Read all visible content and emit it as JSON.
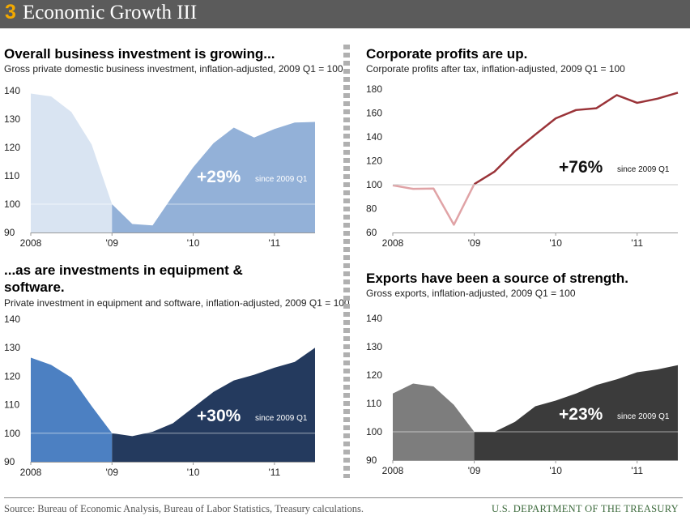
{
  "header": {
    "number": "3",
    "title": "Economic Growth III"
  },
  "footer": {
    "source": "Source: Bureau of Economic Analysis, Bureau of Labor Statistics, Treasury calculations.",
    "agency": "U.S. DEPARTMENT OF THE TREASURY"
  },
  "panels": [
    {
      "title": "Overall business investment is growing...",
      "subtitle": "Gross private domestic business investment, inflation-adjusted, 2009 Q1 = 100"
    },
    {
      "title": "Corporate profits are up.",
      "subtitle": "Corporate profits after tax, inflation-adjusted, 2009 Q1 = 100"
    },
    {
      "title": "...as are investments in equipment & software.",
      "subtitle": "Private investment in equipment and software, inflation-adjusted, 2009 Q1 = 100"
    },
    {
      "title": "Exports have been a source of strength.",
      "subtitle": "Gross exports, inflation-adjusted, 2009 Q1 = 100"
    }
  ],
  "colors": {
    "inv_pre": "#d9e4f2",
    "inv_post": "#93b1d8",
    "eq_pre": "#4c80c2",
    "eq_post": "#243a5e",
    "exp_pre": "#7d7d7d",
    "exp_post": "#3b3b3b",
    "profit_pre": "#e0a3a6",
    "profit_post": "#9a3338"
  },
  "chart_data": [
    {
      "type": "area",
      "x": [
        "2008 Q1",
        "2008 Q2",
        "2008 Q3",
        "2008 Q4",
        "2009 Q1",
        "2009 Q2",
        "2009 Q3",
        "2009 Q4",
        "2010 Q1",
        "2010 Q2",
        "2010 Q3",
        "2010 Q4",
        "2011 Q1",
        "2011 Q2",
        "2011 Q3"
      ],
      "values": [
        139,
        138,
        132.5,
        121,
        100,
        93,
        92.5,
        103,
        113,
        121.5,
        127,
        123.5,
        126.5,
        128.8,
        129
      ],
      "xticks": [
        "2008",
        "'09",
        "'10",
        "'11"
      ],
      "yticks": [
        90,
        100,
        110,
        120,
        130,
        140
      ],
      "ylim": [
        90,
        140
      ],
      "annotation": {
        "value": "+29%",
        "note": "since 2009 Q1"
      }
    },
    {
      "type": "line",
      "x": [
        "2008 Q1",
        "2008 Q2",
        "2008 Q3",
        "2008 Q4",
        "2009 Q1",
        "2009 Q2",
        "2009 Q3",
        "2009 Q4",
        "2010 Q1",
        "2010 Q2",
        "2010 Q3",
        "2010 Q4",
        "2011 Q1",
        "2011 Q2",
        "2011 Q3"
      ],
      "values": [
        99.5,
        96.5,
        96.8,
        66.5,
        100.5,
        111,
        128,
        142,
        155.5,
        162.5,
        164,
        175,
        168.5,
        172,
        177
      ],
      "xticks": [
        "2008",
        "'09",
        "'10",
        "'11"
      ],
      "yticks": [
        60,
        80,
        100,
        120,
        140,
        160,
        180
      ],
      "ylim": [
        60,
        180
      ],
      "annotation": {
        "value": "+76%",
        "note": "since 2009 Q1"
      }
    },
    {
      "type": "area",
      "x": [
        "2008 Q1",
        "2008 Q2",
        "2008 Q3",
        "2008 Q4",
        "2009 Q1",
        "2009 Q2",
        "2009 Q3",
        "2009 Q4",
        "2010 Q1",
        "2010 Q2",
        "2010 Q3",
        "2010 Q4",
        "2011 Q1",
        "2011 Q2",
        "2011 Q3"
      ],
      "values": [
        126.5,
        124,
        119.5,
        109.5,
        100,
        99,
        100.5,
        103.5,
        109,
        114.5,
        118.5,
        120.5,
        123,
        125,
        130
      ],
      "xticks": [
        "2008",
        "'09",
        "'10",
        "'11"
      ],
      "yticks": [
        90,
        100,
        110,
        120,
        130,
        140
      ],
      "ylim": [
        90,
        140
      ],
      "annotation": {
        "value": "+30%",
        "note": "since 2009 Q1"
      }
    },
    {
      "type": "area",
      "x": [
        "2008 Q1",
        "2008 Q2",
        "2008 Q3",
        "2008 Q4",
        "2009 Q1",
        "2009 Q2",
        "2009 Q3",
        "2009 Q4",
        "2010 Q1",
        "2010 Q2",
        "2010 Q3",
        "2010 Q4",
        "2011 Q1",
        "2011 Q2",
        "2011 Q3"
      ],
      "values": [
        113.5,
        117,
        116,
        109.5,
        100,
        100,
        103.5,
        109,
        111,
        113.5,
        116.5,
        118.5,
        121,
        122,
        123.5
      ],
      "xticks": [
        "2008",
        "'09",
        "'10",
        "'11"
      ],
      "yticks": [
        90,
        100,
        110,
        120,
        130,
        140
      ],
      "ylim": [
        90,
        140
      ],
      "annotation": {
        "value": "+23%",
        "note": "since 2009 Q1"
      }
    }
  ]
}
